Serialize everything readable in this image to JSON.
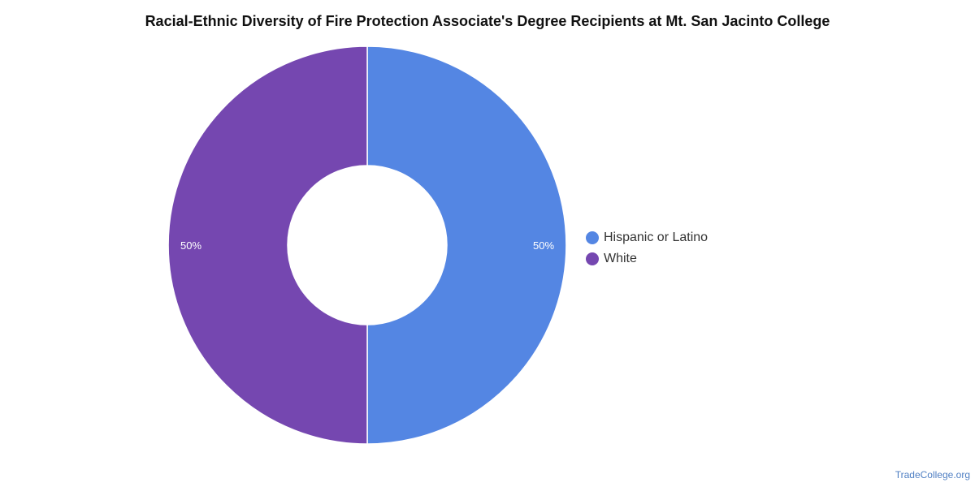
{
  "chart_data": {
    "type": "pie",
    "variant": "donut",
    "title": "Racial-Ethnic Diversity of Fire Protection Associate's Degree Recipients at Mt. San Jacinto College",
    "slices": [
      {
        "label": "Hispanic or Latino",
        "value": 50,
        "display": "50%",
        "color": "#5486e3"
      },
      {
        "label": "White",
        "value": 50,
        "display": "50%",
        "color": "#7547b0"
      }
    ],
    "legend": {
      "placement": "right"
    }
  },
  "watermark": "TradeCollege.org"
}
